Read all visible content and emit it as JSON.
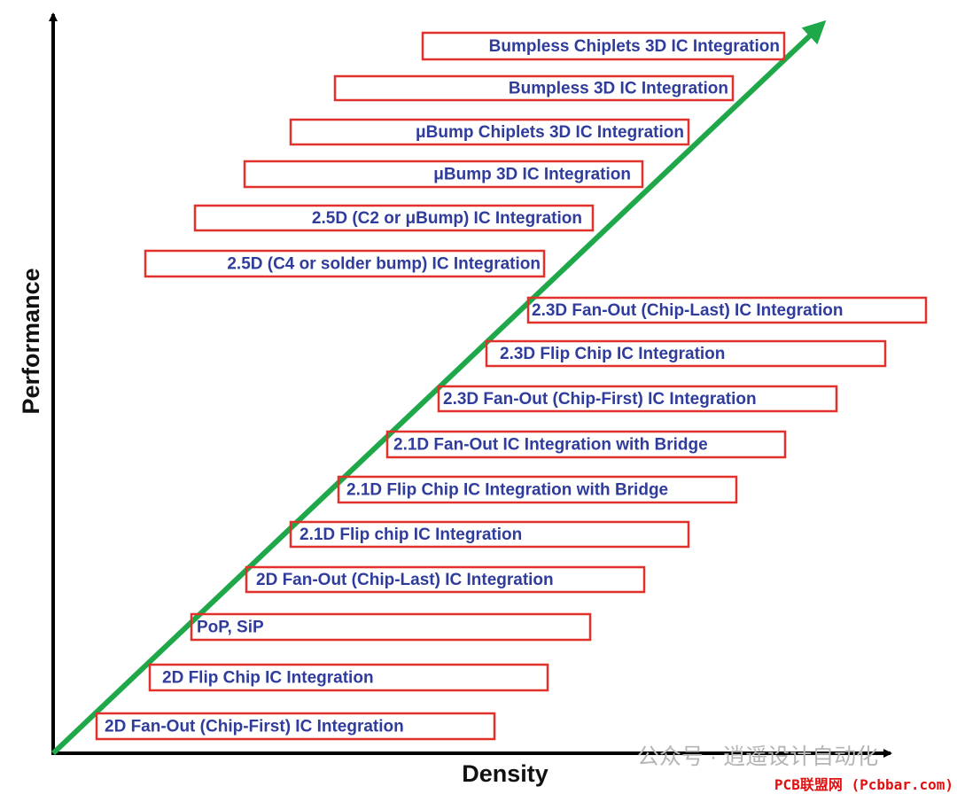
{
  "axes": {
    "y_label": "Performance",
    "x_label": "Density"
  },
  "items": [
    {
      "label": "Bumpless Chiplets 3D IC Integration"
    },
    {
      "label": "Bumpless 3D IC Integration"
    },
    {
      "label": "μBump Chiplets 3D IC Integration"
    },
    {
      "label": "μBump 3D IC Integration"
    },
    {
      "label": "2.5D (C2 or μBump) IC Integration"
    },
    {
      "label": "2.5D (C4 or solder bump) IC Integration"
    },
    {
      "label": "2.3D Fan-Out (Chip-Last) IC Integration"
    },
    {
      "label": "2.3D Flip Chip IC Integration"
    },
    {
      "label": "2.3D Fan-Out (Chip-First) IC Integration"
    },
    {
      "label": "2.1D Fan-Out IC Integration with Bridge"
    },
    {
      "label": "2.1D Flip Chip IC Integration with Bridge"
    },
    {
      "label": "2.1D Flip chip IC Integration"
    },
    {
      "label": "2D Fan-Out (Chip-Last) IC Integration"
    },
    {
      "label": "PoP, SiP"
    },
    {
      "label": "2D Flip Chip IC Integration"
    },
    {
      "label": "2D Fan-Out (Chip-First) IC Integration"
    }
  ],
  "watermark": {
    "account": "公众号 · 逍遥设计自动化",
    "site": "PCB联盟网 (Pcbbar.com)"
  }
}
